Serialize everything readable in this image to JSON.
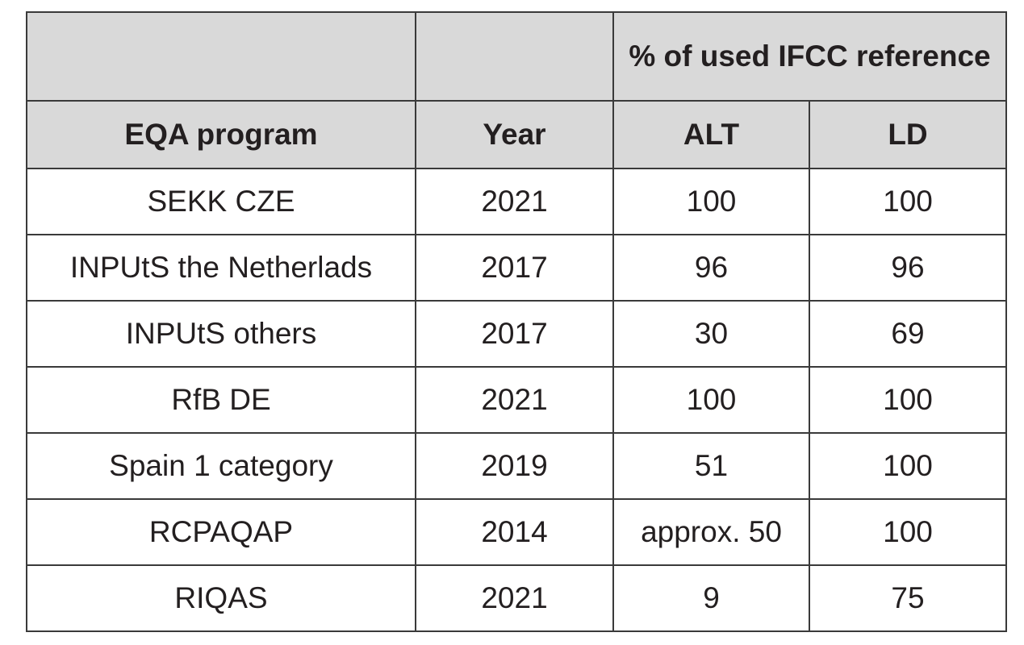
{
  "table": {
    "group_header": "% of used IFCC reference",
    "columns": [
      "EQA program",
      "Year",
      "ALT",
      "LD"
    ],
    "rows": [
      {
        "program": "SEKK CZE",
        "year": "2021",
        "alt": "100",
        "ld": "100"
      },
      {
        "program": "INPUtS the Netherlads",
        "year": "2017",
        "alt": "96",
        "ld": "96"
      },
      {
        "program": "INPUtS others",
        "year": "2017",
        "alt": "30",
        "ld": "69"
      },
      {
        "program": "RfB DE",
        "year": "2021",
        "alt": "100",
        "ld": "100"
      },
      {
        "program": "Spain 1 category",
        "year": "2019",
        "alt": "51",
        "ld": "100"
      },
      {
        "program": "RCPAQAP",
        "year": "2014",
        "alt": "approx. 50",
        "ld": "100"
      },
      {
        "program": "RIQAS",
        "year": "2021",
        "alt": "9",
        "ld": "75"
      }
    ]
  }
}
